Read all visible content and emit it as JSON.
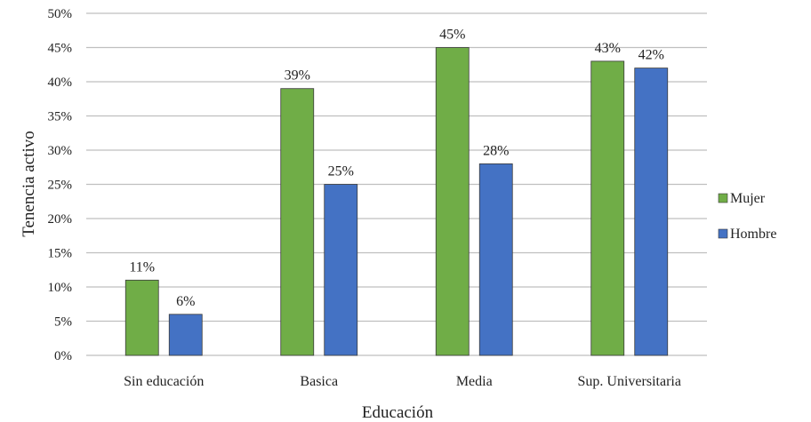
{
  "chart_data": {
    "type": "bar",
    "categories": [
      "Sin educación",
      "Basica",
      "Media",
      "Sup. Universitaria"
    ],
    "series": [
      {
        "name": "Mujer",
        "values": [
          0.11,
          0.39,
          0.45,
          0.43
        ],
        "labels": [
          "11%",
          "39%",
          "45%",
          "43%"
        ],
        "color": "#70ad47"
      },
      {
        "name": "Hombre",
        "values": [
          0.06,
          0.25,
          0.28,
          0.42
        ],
        "labels": [
          "6%",
          "25%",
          "28%",
          "42%"
        ],
        "color": "#4472c4"
      }
    ],
    "title": "",
    "xlabel": "Educación",
    "ylabel": "Tenencia activo",
    "ylim": [
      0,
      0.5
    ],
    "yticks": [
      "0%",
      "5%",
      "10%",
      "15%",
      "20%",
      "25%",
      "30%",
      "35%",
      "40%",
      "45%",
      "50%"
    ],
    "grid": true,
    "legend_position": "right"
  }
}
